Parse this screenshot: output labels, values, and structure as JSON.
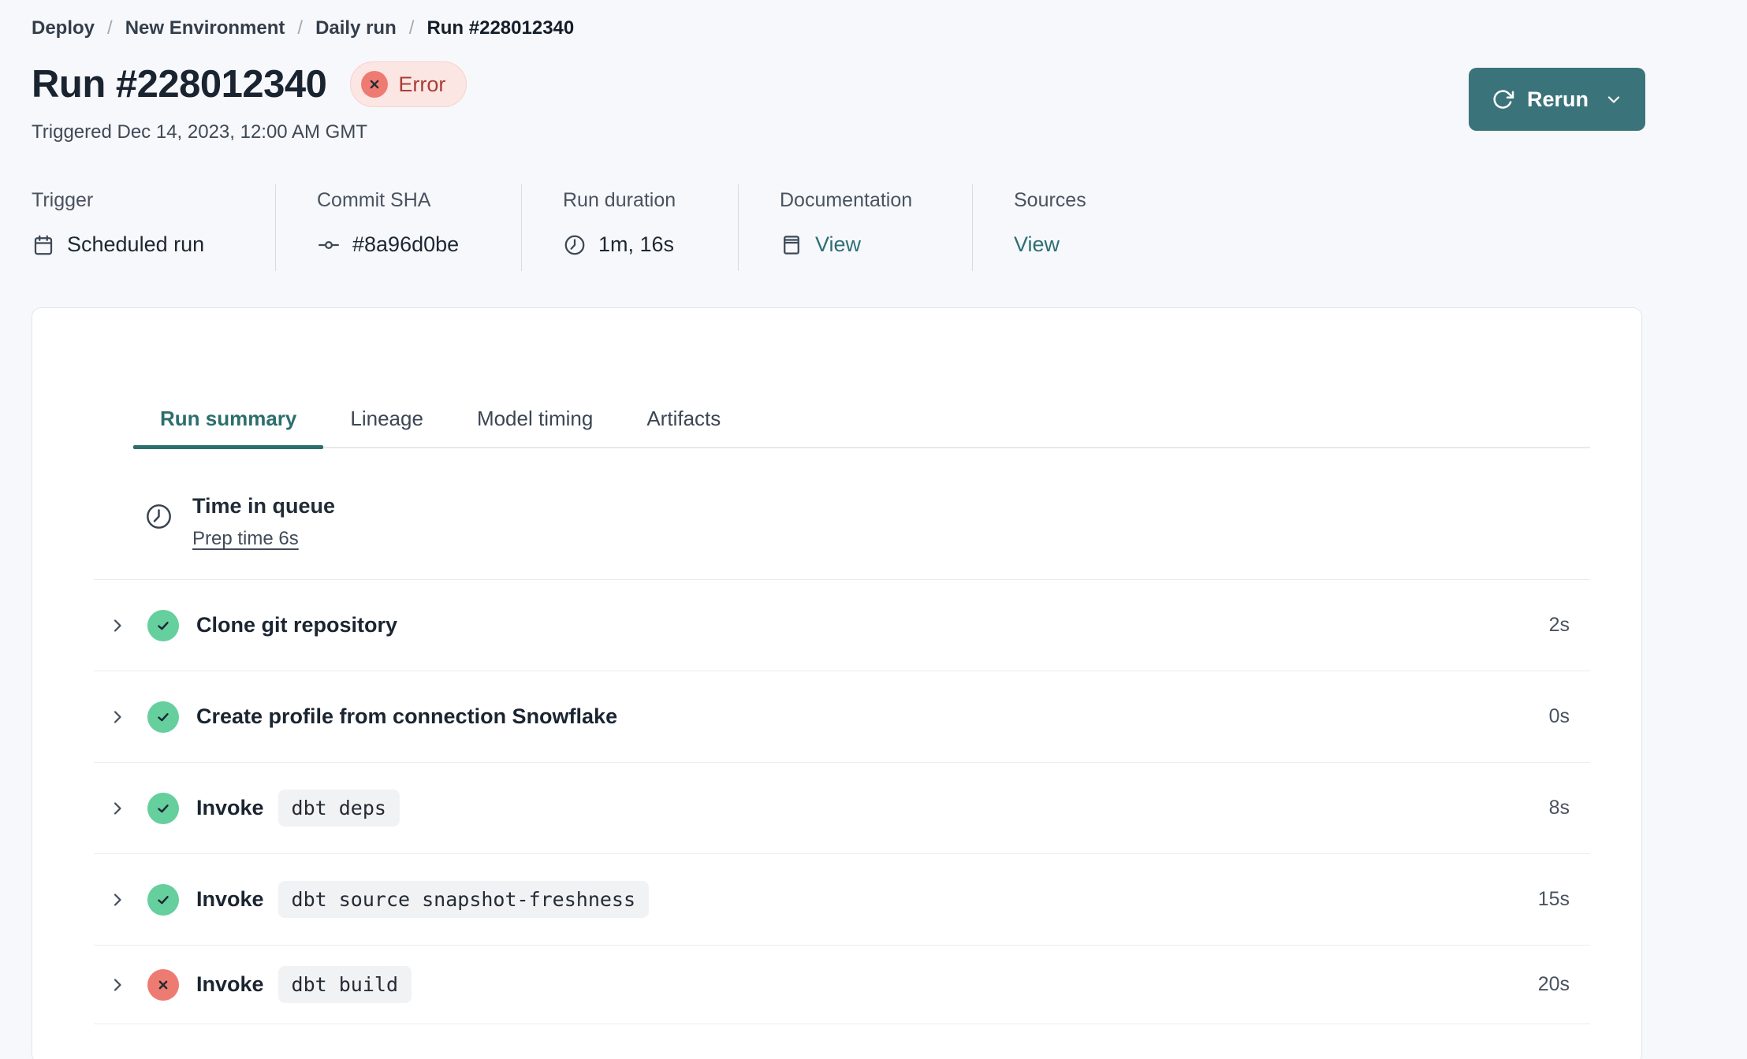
{
  "breadcrumb": {
    "separator": "/",
    "items": [
      "Deploy",
      "New Environment",
      "Daily run",
      "Run #228012340"
    ]
  },
  "header": {
    "title": "Run #228012340",
    "status": {
      "label": "Error",
      "icon": "error-x-icon"
    },
    "triggered": "Triggered Dec 14, 2023, 12:00 AM GMT",
    "rerun_label": "Rerun"
  },
  "meta": {
    "columns": [
      {
        "label": "Trigger",
        "value": "Scheduled run",
        "icon": "calendar-icon",
        "link": false
      },
      {
        "label": "Commit SHA",
        "value": "#8a96d0be",
        "icon": "commit-icon",
        "link": false
      },
      {
        "label": "Run duration",
        "value": "1m, 16s",
        "icon": "clock-icon",
        "link": false
      },
      {
        "label": "Documentation",
        "value": "View",
        "icon": "docs-icon",
        "link": true
      },
      {
        "label": "Sources",
        "value": "View",
        "icon": null,
        "link": true
      }
    ]
  },
  "tabs": [
    {
      "label": "Run summary",
      "active": true
    },
    {
      "label": "Lineage",
      "active": false
    },
    {
      "label": "Model timing",
      "active": false
    },
    {
      "label": "Artifacts",
      "active": false
    }
  ],
  "queue": {
    "title": "Time in queue",
    "link_label": "Prep time 6s",
    "icon": "clock-icon"
  },
  "steps": [
    {
      "label": "Clone git repository",
      "command": null,
      "status": "success",
      "duration": "2s"
    },
    {
      "label": "Create profile from connection Snowflake",
      "command": null,
      "status": "success",
      "duration": "0s"
    },
    {
      "label": "Invoke",
      "command": "dbt deps",
      "status": "success",
      "duration": "8s"
    },
    {
      "label": "Invoke",
      "command": "dbt source snapshot-freshness",
      "status": "success",
      "duration": "15s"
    },
    {
      "label": "Invoke",
      "command": "dbt build",
      "status": "error",
      "duration": "20s"
    }
  ],
  "colors": {
    "link_teal": "#2e6e74",
    "button_teal": "#3b737b",
    "active_tab_teal": "#2c6e6c",
    "success_green": "#65cf9d",
    "error_red": "#ee7b72",
    "error_text": "#a93e35",
    "error_badge_bg": "#fce6e3"
  }
}
